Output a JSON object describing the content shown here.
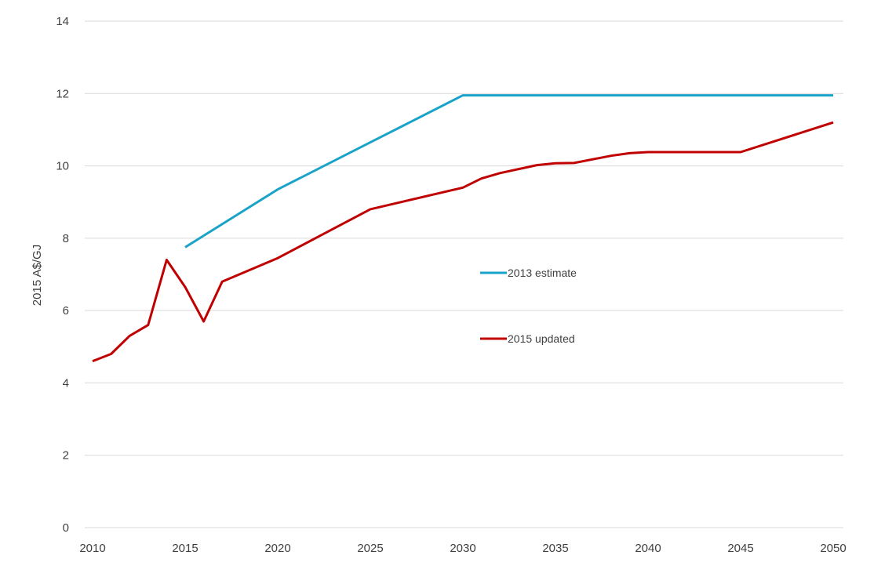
{
  "chart_data": {
    "type": "line",
    "title": "",
    "xlabel": "",
    "ylabel": "2015 A$/GJ",
    "xlim": [
      2010,
      2050
    ],
    "ylim": [
      0,
      14
    ],
    "x_ticks": [
      2010,
      2015,
      2020,
      2025,
      2030,
      2035,
      2040,
      2045,
      2050
    ],
    "y_ticks": [
      0,
      2,
      4,
      6,
      8,
      10,
      12,
      14
    ],
    "grid": "horizontal",
    "legend_position": "inside-center-right",
    "series": [
      {
        "name": "2013 estimate",
        "color": "#1aa3c9",
        "points": [
          [
            2015,
            7.75
          ],
          [
            2020,
            9.35
          ],
          [
            2025,
            10.65
          ],
          [
            2030,
            11.95
          ],
          [
            2050,
            11.95
          ]
        ]
      },
      {
        "name": "2015 updated",
        "color": "#c00000",
        "points": [
          [
            2010,
            4.6
          ],
          [
            2011,
            4.8
          ],
          [
            2012,
            5.3
          ],
          [
            2013,
            5.6
          ],
          [
            2014,
            7.4
          ],
          [
            2015,
            6.65
          ],
          [
            2016,
            5.7
          ],
          [
            2017,
            6.8
          ],
          [
            2020,
            7.45
          ],
          [
            2025,
            8.8
          ],
          [
            2030,
            9.4
          ],
          [
            2031,
            9.65
          ],
          [
            2032,
            9.8
          ],
          [
            2034,
            10.02
          ],
          [
            2035,
            10.07
          ],
          [
            2036,
            10.08
          ],
          [
            2038,
            10.28
          ],
          [
            2039,
            10.35
          ],
          [
            2040,
            10.38
          ],
          [
            2045,
            10.38
          ],
          [
            2050,
            11.2
          ]
        ]
      }
    ]
  }
}
